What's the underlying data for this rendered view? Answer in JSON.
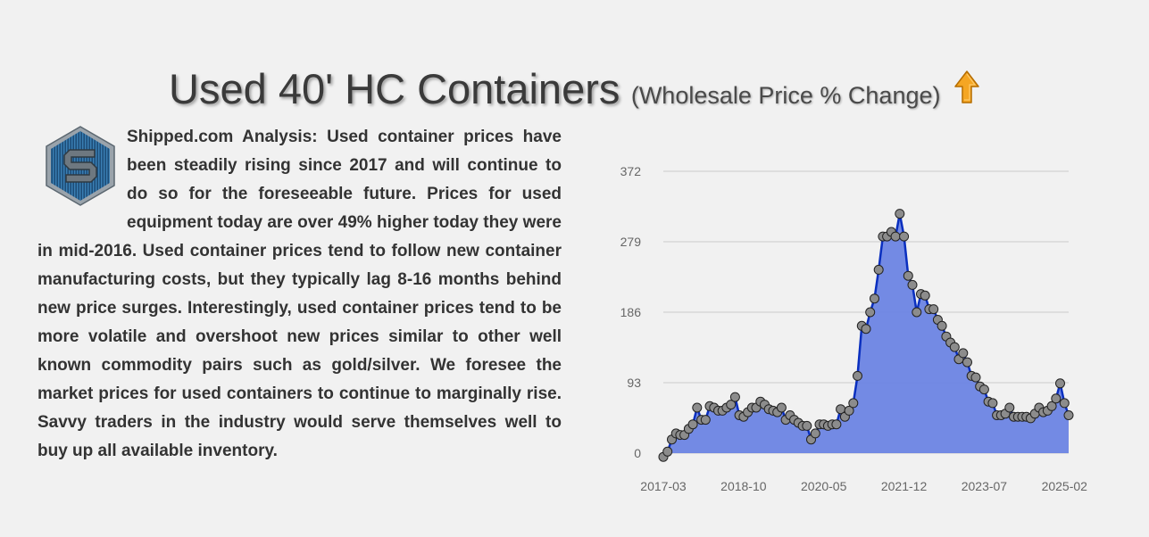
{
  "page": {
    "title_main": "Used 40' HC Containers",
    "title_sub": "(Wholesale Price % Change)",
    "trend_icon": "up-arrow-icon",
    "accent_color": "#f5a623"
  },
  "logo": {
    "icon": "shipped-logo-icon"
  },
  "analysis": {
    "text": "Shipped.com Analysis: Used container prices have been steadily rising since 2017 and will continue to do so for the foreseeable future. Prices for used equipment today are over 49% higher today they were in mid-2016. Used container prices tend to follow new container manufacturing costs, but they typically lag 8-16 months behind new price surges. Interestingly, used container prices tend to be more volatile and overshoot new prices similar to other well known commodity pairs such as gold/silver. We foresee the market prices for used containers to continue to marginally rise. Savvy traders in the industry would serve themselves well to buy up all available inventory."
  },
  "chart_data": {
    "type": "area",
    "x_ticks": [
      "2017-03",
      "2018-10",
      "2020-05",
      "2021-12",
      "2023-07",
      "2025-02"
    ],
    "y_ticks": [
      0,
      93,
      186,
      279,
      372
    ],
    "ylim": [
      0,
      372
    ],
    "grid": true,
    "legend": "none",
    "line_color": "#0a2fbf",
    "fill_color": "#6c84e3",
    "marker_color": "#8c8c8c",
    "x": [
      "2017-03",
      "2017-04",
      "2017-05",
      "2017-06",
      "2017-07",
      "2017-08",
      "2017-09",
      "2017-10",
      "2017-11",
      "2017-12",
      "2018-01",
      "2018-02",
      "2018-03",
      "2018-04",
      "2018-05",
      "2018-06",
      "2018-07",
      "2018-08",
      "2018-09",
      "2018-10",
      "2018-11",
      "2018-12",
      "2019-01",
      "2019-02",
      "2019-03",
      "2019-04",
      "2019-05",
      "2019-06",
      "2019-07",
      "2019-08",
      "2019-09",
      "2019-10",
      "2019-11",
      "2019-12",
      "2020-01",
      "2020-02",
      "2020-03",
      "2020-04",
      "2020-05",
      "2020-06",
      "2020-07",
      "2020-08",
      "2020-09",
      "2020-10",
      "2020-11",
      "2020-12",
      "2021-01",
      "2021-02",
      "2021-03",
      "2021-04",
      "2021-05",
      "2021-06",
      "2021-07",
      "2021-08",
      "2021-09",
      "2021-10",
      "2021-11",
      "2021-12",
      "2022-01",
      "2022-02",
      "2022-03",
      "2022-04",
      "2022-05",
      "2022-06",
      "2022-07",
      "2022-08",
      "2022-09",
      "2022-10",
      "2022-11",
      "2022-12",
      "2023-01",
      "2023-02",
      "2023-03",
      "2023-04",
      "2023-05",
      "2023-06",
      "2023-07",
      "2023-08",
      "2023-09",
      "2023-10",
      "2023-11",
      "2023-12",
      "2024-01",
      "2024-02",
      "2024-03",
      "2024-04",
      "2024-05",
      "2024-06",
      "2024-07",
      "2024-08",
      "2024-09",
      "2024-10",
      "2024-11",
      "2024-12",
      "2025-01",
      "2025-02",
      "2025-03"
    ],
    "values": [
      -5,
      2,
      18,
      26,
      24,
      24,
      32,
      38,
      60,
      44,
      44,
      62,
      60,
      56,
      56,
      60,
      64,
      74,
      50,
      48,
      54,
      60,
      60,
      68,
      64,
      58,
      56,
      54,
      60,
      44,
      50,
      44,
      40,
      36,
      36,
      18,
      26,
      38,
      38,
      36,
      38,
      38,
      58,
      48,
      56,
      66,
      102,
      168,
      164,
      186,
      204,
      242,
      286,
      286,
      292,
      286,
      316,
      286,
      234,
      222,
      186,
      210,
      208,
      190,
      190,
      176,
      168,
      154,
      146,
      140,
      124,
      132,
      120,
      102,
      100,
      88,
      84,
      68,
      66,
      50,
      50,
      52,
      60,
      48,
      48,
      48,
      48,
      46,
      52,
      60,
      54,
      56,
      62,
      72,
      92,
      66,
      50
    ]
  }
}
